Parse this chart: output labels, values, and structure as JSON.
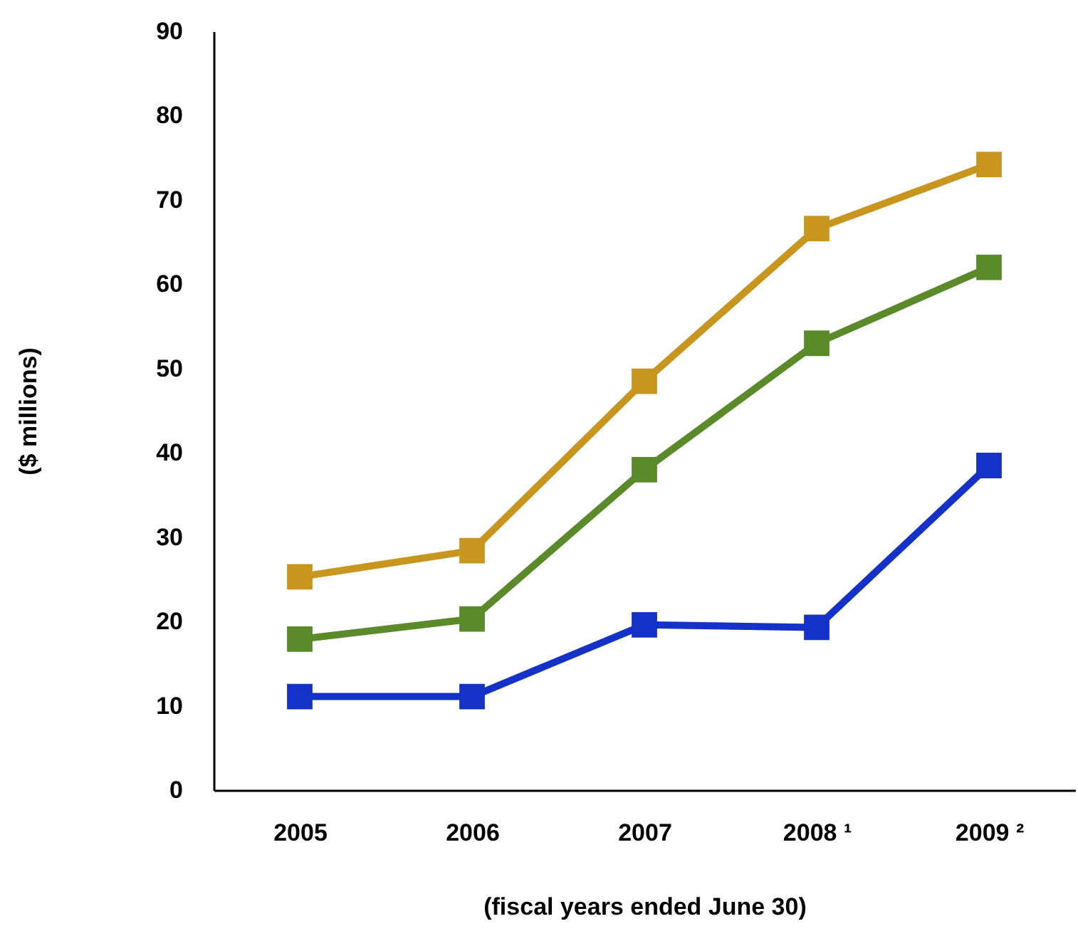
{
  "chart_data": {
    "type": "line",
    "xlabel": "(fiscal years ended June 30)",
    "ylabel": "($ millions)",
    "categories": [
      "2005",
      "2006",
      "2007",
      "2008 ¹",
      "2009 ²"
    ],
    "series": [
      {
        "color": "#c8961e",
        "values": [
          25.3,
          28.4,
          48.5,
          66.6,
          74.2
        ]
      },
      {
        "color": "#5a8a2a",
        "values": [
          17.9,
          20.3,
          38,
          53,
          62
        ]
      },
      {
        "color": "#1432c8",
        "values": [
          11.1,
          11.1,
          19.6,
          19.3,
          38.5
        ]
      }
    ],
    "ylim": [
      0,
      90
    ],
    "yticks": [
      0,
      10,
      20,
      30,
      40,
      50,
      60,
      70,
      80,
      90
    ],
    "grid": false,
    "legend": false,
    "marker": "square",
    "line_style": "solid"
  }
}
